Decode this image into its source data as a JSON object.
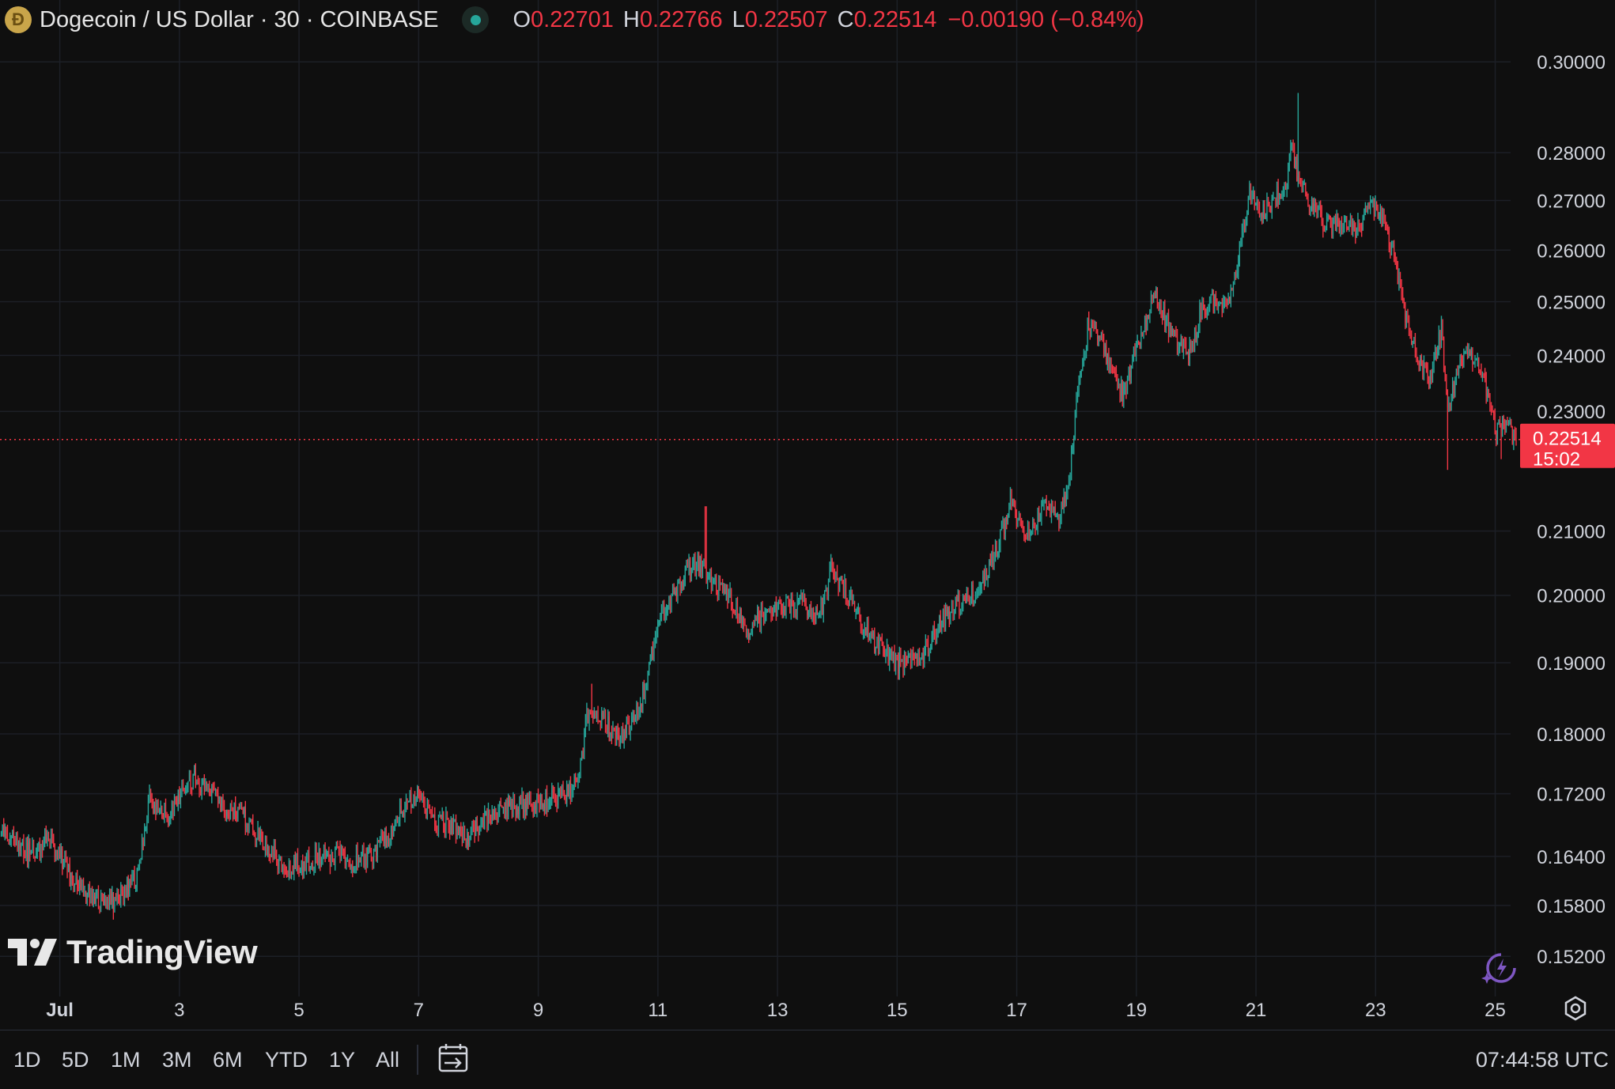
{
  "header": {
    "symbol_title": "Dogecoin / US Dollar · 30 · COINBASE",
    "open_label": "O",
    "open": "0.22701",
    "high_label": "H",
    "high": "0.22766",
    "low_label": "L",
    "low": "0.22507",
    "close_label": "C",
    "close": "0.22514",
    "change": "−0.00190 (−0.84%)"
  },
  "price_tag": {
    "price": "0.22514",
    "countdown": "15:02"
  },
  "ranges": [
    "1D",
    "5D",
    "1M",
    "3M",
    "6M",
    "YTD",
    "1Y",
    "All"
  ],
  "clock": "07:44:58 UTC",
  "logo": {
    "text": "TradingView"
  },
  "colors": {
    "up": "#26a69a",
    "down": "#f23645",
    "background": "#0f0f0f",
    "grid": "#1c1f26"
  },
  "chart_data": {
    "type": "candlestick",
    "axis_scale": "log",
    "y_ticks": [
      "0.30000",
      "0.28000",
      "0.27000",
      "0.26000",
      "0.25000",
      "0.24000",
      "0.23000",
      "0.21000",
      "0.20000",
      "0.19000",
      "0.18000",
      "0.17200",
      "0.16400",
      "0.15800",
      "0.15200"
    ],
    "x_ticks": [
      "Jul",
      "3",
      "5",
      "7",
      "9",
      "11",
      "13",
      "15",
      "17",
      "19",
      "21",
      "23",
      "25"
    ],
    "x_tick_days": [
      1,
      3,
      5,
      7,
      9,
      11,
      13,
      15,
      17,
      19,
      21,
      23,
      25
    ],
    "x_range_days": [
      0.0,
      25.35
    ],
    "ylim": [
      0.1485,
      0.3055
    ],
    "current_price": 0.22514,
    "path_days": [
      0.0,
      0.2,
      0.5,
      0.8,
      1.0,
      1.2,
      1.5,
      1.8,
      2.0,
      2.3,
      2.5,
      2.7,
      2.8,
      3.0,
      3.2,
      3.5,
      3.8,
      4.1,
      4.4,
      4.6,
      4.8,
      5.0,
      5.3,
      5.6,
      5.9,
      6.2,
      6.5,
      6.7,
      7.0,
      7.2,
      7.5,
      7.8,
      8.1,
      8.5,
      8.8,
      9.2,
      9.5,
      9.7,
      9.8,
      9.9,
      10.2,
      10.4,
      10.6,
      10.8,
      10.95,
      11.1,
      11.3,
      11.5,
      11.7,
      11.9,
      12.2,
      12.5,
      12.8,
      13.1,
      13.4,
      13.7,
      13.9,
      14.2,
      14.4,
      14.7,
      15.0,
      15.2,
      15.5,
      15.8,
      16.1,
      16.4,
      16.7,
      16.9,
      17.0,
      17.2,
      17.5,
      17.7,
      17.9,
      18.0,
      18.2,
      18.4,
      18.6,
      18.8,
      18.9,
      19.1,
      19.3,
      19.5,
      19.7,
      19.9,
      20.1,
      20.3,
      20.5,
      20.7,
      20.9,
      21.1,
      21.3,
      21.5,
      21.6,
      21.7,
      21.9,
      22.1,
      22.3,
      22.5,
      22.7,
      22.9,
      23.1,
      23.3,
      23.5,
      23.7,
      23.9,
      24.1,
      24.2,
      24.4,
      24.6,
      24.8,
      25.0,
      25.2,
      25.35
    ],
    "path_closes": [
      0.167,
      0.166,
      0.1645,
      0.166,
      0.164,
      0.161,
      0.159,
      0.158,
      0.1595,
      0.1615,
      0.171,
      0.17,
      0.169,
      0.172,
      0.174,
      0.173,
      0.17,
      0.169,
      0.166,
      0.164,
      0.1625,
      0.163,
      0.164,
      0.164,
      0.1635,
      0.164,
      0.167,
      0.17,
      0.172,
      0.169,
      0.168,
      0.1665,
      0.1685,
      0.17,
      0.171,
      0.171,
      0.172,
      0.175,
      0.183,
      0.182,
      0.181,
      0.18,
      0.182,
      0.187,
      0.193,
      0.198,
      0.201,
      0.204,
      0.205,
      0.202,
      0.2,
      0.195,
      0.197,
      0.198,
      0.199,
      0.197,
      0.204,
      0.2,
      0.196,
      0.192,
      0.19,
      0.1895,
      0.192,
      0.197,
      0.199,
      0.201,
      0.208,
      0.215,
      0.212,
      0.21,
      0.215,
      0.211,
      0.22,
      0.232,
      0.246,
      0.242,
      0.238,
      0.232,
      0.238,
      0.244,
      0.252,
      0.246,
      0.242,
      0.241,
      0.249,
      0.25,
      0.25,
      0.258,
      0.272,
      0.268,
      0.27,
      0.273,
      0.281,
      0.274,
      0.27,
      0.266,
      0.265,
      0.266,
      0.264,
      0.269,
      0.266,
      0.259,
      0.247,
      0.24,
      0.235,
      0.245,
      0.23,
      0.238,
      0.24,
      0.236,
      0.227,
      0.227,
      0.2251
    ],
    "extremes": [
      {
        "day": 1.9,
        "low": 0.1563
      },
      {
        "day": 9.9,
        "high": 0.187
      },
      {
        "day": 11.8,
        "high": 0.214
      },
      {
        "day": 15.1,
        "low": 0.188
      },
      {
        "day": 21.7,
        "high": 0.293
      },
      {
        "day": 24.2,
        "low": 0.22
      },
      {
        "day": 25.1,
        "low": 0.2218
      }
    ]
  }
}
